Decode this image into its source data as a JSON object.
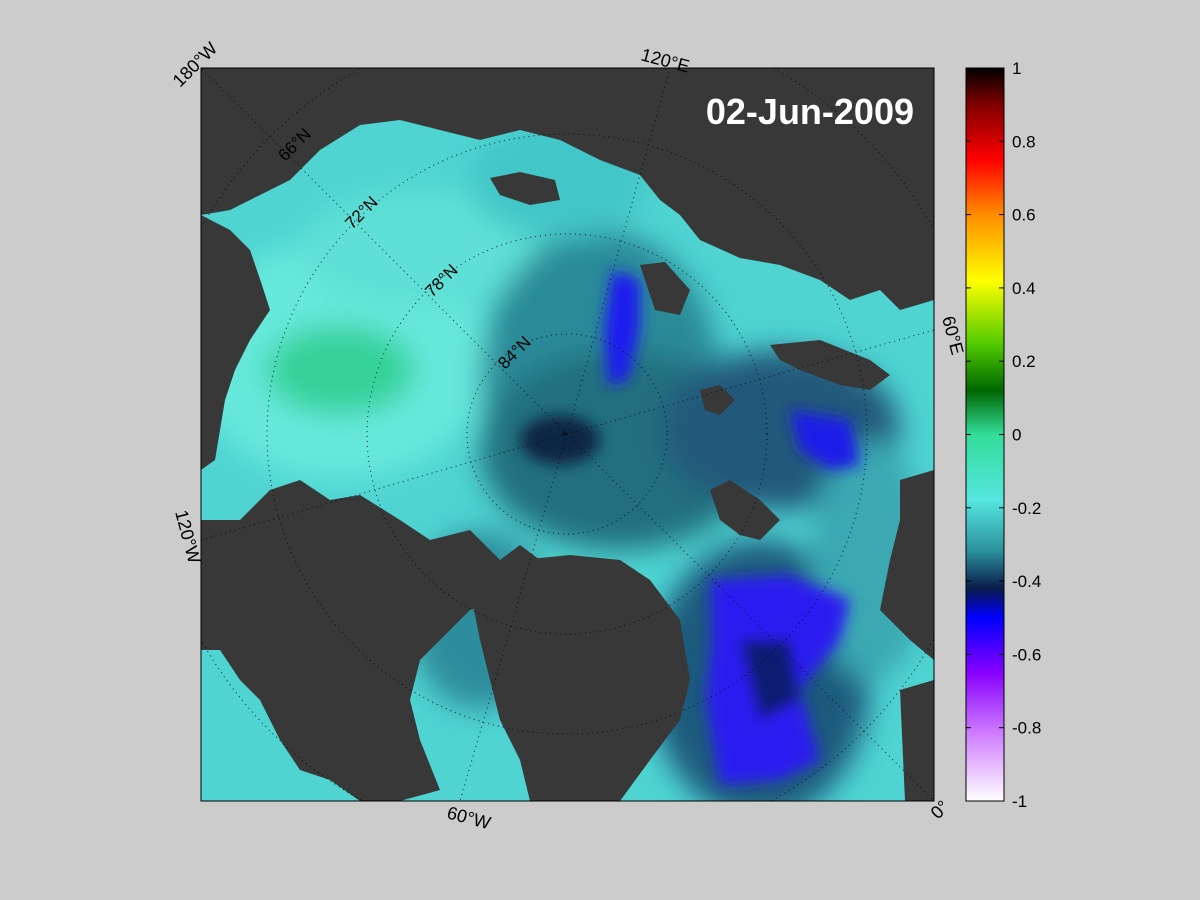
{
  "map": {
    "date_label": "02-Jun-2009",
    "meridian_labels": {
      "lon_180W": "180°W",
      "lon_120E": "120°E",
      "lon_60E": "60°E",
      "lon_120W": "120°W",
      "lon_60W": "60°W",
      "lon_0": "0°"
    },
    "parallel_labels": {
      "lat_66N": "66°N",
      "lat_72N": "72°N",
      "lat_78N": "78°N",
      "lat_84N": "84°N"
    },
    "colors": {
      "background": "#cccccc",
      "land": "#383838",
      "outer_land": "#808080",
      "border": "#000000"
    }
  },
  "colorbar": {
    "ticks": [
      {
        "value": 1,
        "label": "1"
      },
      {
        "value": 0.8,
        "label": "0.8"
      },
      {
        "value": 0.6,
        "label": "0.6"
      },
      {
        "value": 0.4,
        "label": "0.4"
      },
      {
        "value": 0.2,
        "label": "0.2"
      },
      {
        "value": 0,
        "label": "0"
      },
      {
        "value": -0.2,
        "label": "-0.2"
      },
      {
        "value": -0.4,
        "label": "-0.4"
      },
      {
        "value": -0.6,
        "label": "-0.6"
      },
      {
        "value": -0.8,
        "label": "-0.8"
      },
      {
        "value": -1,
        "label": "-1"
      }
    ],
    "range": [
      -1,
      1
    ],
    "stops": [
      {
        "value": 1.0,
        "color": "#000000"
      },
      {
        "value": 0.9,
        "color": "#800000"
      },
      {
        "value": 0.75,
        "color": "#ff0000"
      },
      {
        "value": 0.6,
        "color": "#ff8c00"
      },
      {
        "value": 0.42,
        "color": "#ffff00"
      },
      {
        "value": 0.25,
        "color": "#55cc00"
      },
      {
        "value": 0.12,
        "color": "#006600"
      },
      {
        "value": 0.0,
        "color": "#33dd99"
      },
      {
        "value": -0.18,
        "color": "#55e6e0"
      },
      {
        "value": -0.32,
        "color": "#2a8f9a"
      },
      {
        "value": -0.42,
        "color": "#0a1a4a"
      },
      {
        "value": -0.5,
        "color": "#0000ff"
      },
      {
        "value": -0.65,
        "color": "#8800ff"
      },
      {
        "value": -0.82,
        "color": "#d080ff"
      },
      {
        "value": -1.0,
        "color": "#ffffff"
      }
    ]
  }
}
